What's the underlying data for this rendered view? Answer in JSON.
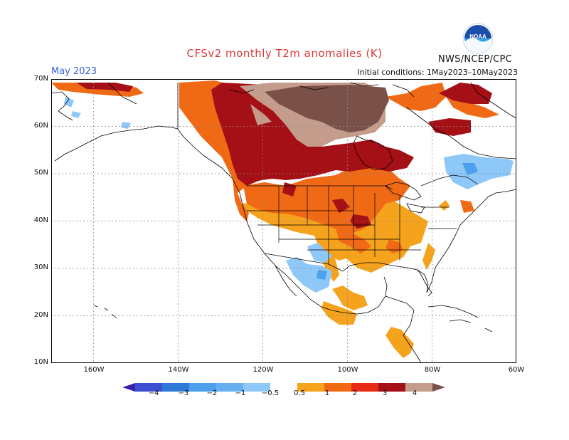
{
  "title": "CFSv2 monthly T2m anomalies (K)",
  "month": "May 2023",
  "initial_conditions": "Initial conditions: 1May2023–10May2023",
  "org": "NWS/NCEP/CPC",
  "logo_text": "NOAA",
  "lat_labels": [
    "70N",
    "60N",
    "50N",
    "40N",
    "30N",
    "20N",
    "10N"
  ],
  "lon_labels": [
    "160W",
    "140W",
    "120W",
    "100W",
    "80W",
    "60W"
  ],
  "colorbar": {
    "labels": [
      "−4",
      "−3",
      "−2",
      "−1",
      "−0.5",
      "0.5",
      "1",
      "2",
      "3",
      "4"
    ],
    "colors": [
      "#3a1fa8",
      "#3c4fd0",
      "#2f79d8",
      "#4ca0ee",
      "#8ec8f8",
      "#ffffff",
      "#f5a21c",
      "#f06a15",
      "#e62a14",
      "#a50f16",
      "#c49c8c",
      "#7a5149"
    ]
  },
  "colors": {
    "title": "#d83a3a",
    "month": "#3b5fd6",
    "coast": "#000000",
    "grid": "#8a8a8a",
    "land_bg": "#ffffff",
    "ocean": "#ffffff"
  }
}
